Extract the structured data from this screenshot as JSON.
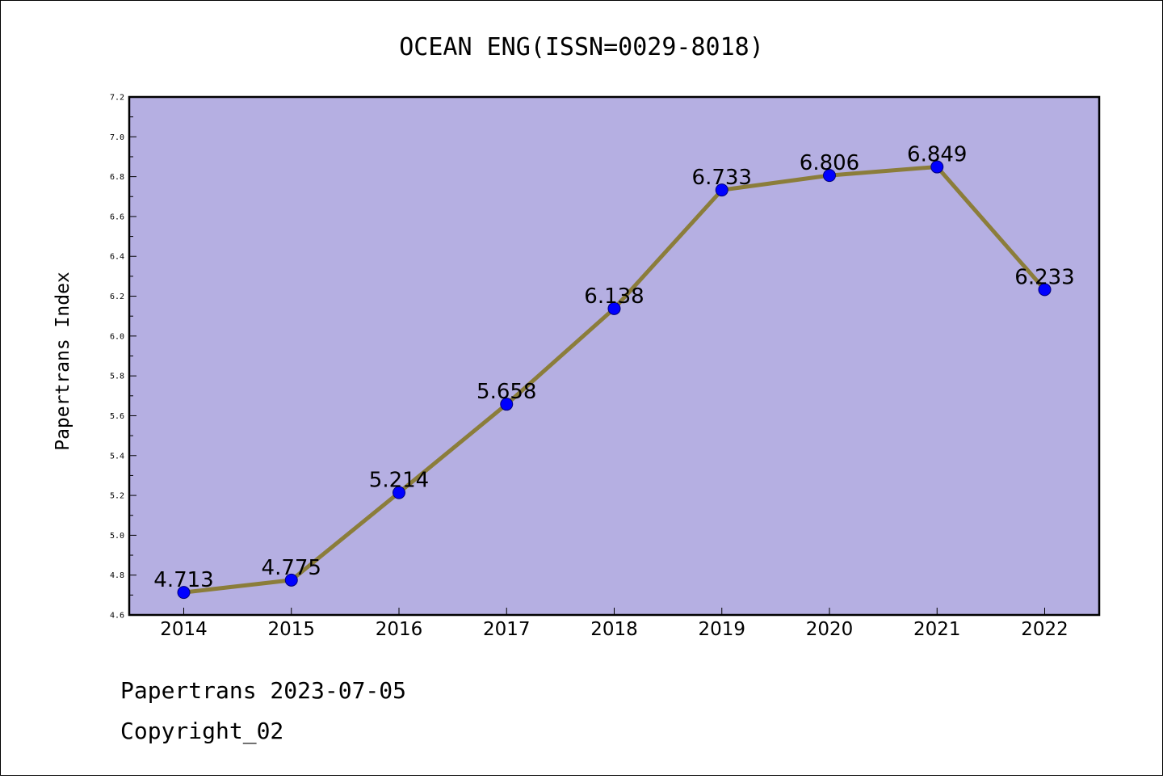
{
  "chart_data": {
    "type": "line",
    "title": "OCEAN ENG(ISSN=0029-8018)",
    "xlabel": "",
    "ylabel": "Papertrans Index",
    "x": [
      "2014",
      "2015",
      "2016",
      "2017",
      "2018",
      "2019",
      "2020",
      "2021",
      "2022"
    ],
    "values": [
      4.713,
      4.775,
      5.214,
      5.658,
      6.138,
      6.733,
      6.806,
      6.849,
      6.233
    ],
    "data_labels": [
      "4.713",
      "4.775",
      "5.214",
      "5.658",
      "6.138",
      "6.733",
      "6.806",
      "6.849",
      "6.233"
    ],
    "ylim": [
      4.6,
      7.2
    ],
    "yticks": [
      "4.6",
      "4.8",
      "5.0",
      "5.2",
      "5.4",
      "5.6",
      "5.8",
      "6.0",
      "6.2",
      "6.4",
      "6.6",
      "6.8",
      "7.0",
      "7.2"
    ],
    "grid": false,
    "legend": "none",
    "colors": {
      "plot_background": "#b5afe2",
      "line": "#8b7d3a",
      "marker": "#0000ff"
    }
  },
  "footer": {
    "line1": "Papertrans 2023-07-05",
    "line2": "Copyright_02"
  }
}
